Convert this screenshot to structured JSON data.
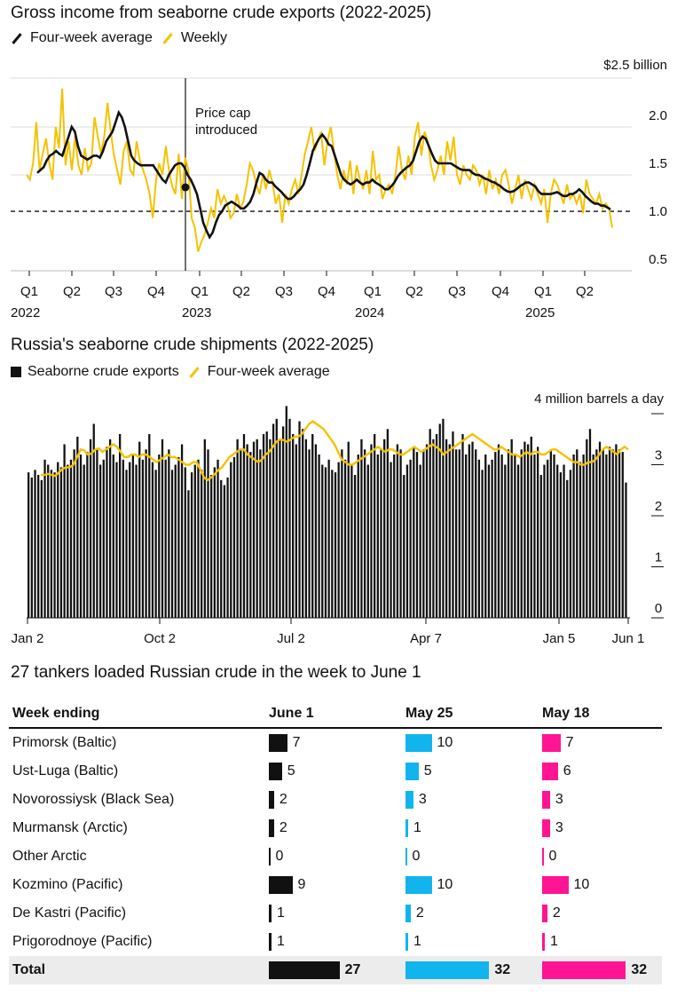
{
  "chart1": {
    "title": "Gross income from seaborne crude exports (2022-2025)",
    "legend": [
      "Four-week average",
      "Weekly"
    ],
    "colors": {
      "avg": "#111111",
      "weekly": "#f5c200"
    },
    "unit_label": "$2.5 billion",
    "y_ticks": [
      "2.0",
      "1.5",
      "1.0",
      "0.5"
    ],
    "quarters": [
      "Q1",
      "Q2",
      "Q3",
      "Q4",
      "Q1",
      "Q2",
      "Q3",
      "Q4",
      "Q1",
      "Q2",
      "Q3",
      "Q4",
      "Q1",
      "Q2"
    ],
    "years": [
      "2022",
      "2023",
      "2024",
      "2025"
    ],
    "annotation": "Price cap introduced",
    "annotation_lines": [
      "Price cap",
      "introduced"
    ]
  },
  "chart2": {
    "title": "Russia's seaborne crude shipments (2022-2025)",
    "legend": [
      "Seaborne crude exports",
      "Four-week average"
    ],
    "colors": {
      "bars": "#111111",
      "avg": "#f5c200"
    },
    "unit_label": "4 million barrels a day",
    "y_ticks": [
      "3",
      "2",
      "1",
      "0"
    ],
    "x_labels": [
      "Jan 2",
      "Oct 2",
      "Jul 2",
      "Apr 7",
      "Jan 5",
      "Jun 1"
    ]
  },
  "chart_data": [
    {
      "type": "line",
      "title": "Gross income from seaborne crude exports (2022-2025)",
      "ylabel": "$ billion",
      "ylim": [
        0.5,
        2.5
      ],
      "reference_line": 1.12,
      "annotation": {
        "text": "Price cap introduced",
        "date": "2022-12-05"
      },
      "series": [
        {
          "name": "Weekly",
          "values": [
            1.5,
            1.45,
            1.62,
            2.05,
            1.55,
            1.72,
            1.88,
            1.62,
            1.45,
            2.0,
            1.78,
            2.4,
            1.6,
            1.85,
            1.55,
            1.9,
            1.6,
            1.5,
            1.78,
            1.55,
            1.62,
            2.1,
            1.9,
            1.72,
            1.9,
            2.25,
            1.95,
            1.7,
            1.55,
            1.4,
            1.75,
            1.85,
            1.55,
            1.5,
            1.85,
            1.65,
            1.55,
            1.45,
            1.3,
            1.05,
            1.45,
            1.62,
            1.5,
            1.8,
            1.55,
            1.38,
            1.3,
            1.72,
            1.25,
            1.68,
            1.55,
            1.05,
            0.95,
            0.7,
            0.8,
            0.88,
            1.0,
            1.15,
            1.05,
            1.35,
            1.2,
            1.28,
            1.2,
            1.05,
            1.1,
            1.3,
            1.15,
            1.22,
            1.4,
            1.62,
            1.55,
            1.4,
            1.3,
            1.5,
            1.35,
            1.55,
            1.42,
            1.2,
            1.3,
            1.0,
            1.3,
            1.2,
            1.35,
            1.45,
            1.3,
            1.5,
            1.72,
            1.85,
            2.0,
            1.75,
            1.85,
            1.95,
            1.6,
            1.85,
            2.0,
            1.75,
            1.5,
            1.35,
            1.55,
            1.4,
            1.65,
            1.3,
            1.6,
            1.45,
            1.35,
            1.55,
            1.3,
            1.75,
            1.45,
            1.5,
            1.25,
            1.35,
            1.4,
            1.3,
            1.5,
            1.8,
            1.55,
            1.45,
            1.7,
            1.5,
            1.9,
            2.05,
            1.7,
            1.95,
            1.85,
            1.6,
            1.45,
            1.55,
            1.7,
            1.5,
            1.85,
            1.65,
            1.9,
            1.5,
            1.4,
            1.6,
            1.5,
            1.45,
            1.6,
            1.55,
            1.4,
            1.5,
            1.3,
            1.55,
            1.35,
            1.45,
            1.3,
            1.5,
            1.55,
            1.4,
            1.2,
            1.35,
            1.5,
            1.25,
            1.45,
            1.35,
            1.25,
            1.4,
            1.3,
            1.2,
            1.35,
            1.0,
            1.3,
            1.45,
            1.4,
            1.3,
            1.2,
            1.4,
            1.25,
            1.3,
            1.2,
            1.3,
            1.1,
            1.45,
            1.3,
            1.25,
            1.2,
            1.3,
            1.15,
            1.2,
            1.15,
            0.95
          ]
        },
        {
          "name": "Four-week average",
          "values": [
            1.52,
            1.55,
            1.58,
            1.65,
            1.7,
            1.72,
            1.75,
            1.72,
            1.7,
            1.8,
            1.9,
            2.0,
            1.95,
            1.8,
            1.7,
            1.68,
            1.66,
            1.68,
            1.7,
            1.7,
            1.68,
            1.75,
            1.85,
            1.9,
            1.95,
            2.05,
            2.15,
            2.1,
            2.0,
            1.85,
            1.7,
            1.65,
            1.62,
            1.6,
            1.6,
            1.6,
            1.6,
            1.6,
            1.55,
            1.5,
            1.45,
            1.42,
            1.5,
            1.55,
            1.6,
            1.62,
            1.62,
            1.58,
            1.5,
            1.45,
            1.38,
            1.3,
            1.15,
            1.0,
            0.92,
            0.85,
            0.9,
            1.0,
            1.08,
            1.12,
            1.18,
            1.2,
            1.22,
            1.2,
            1.18,
            1.15,
            1.15,
            1.18,
            1.22,
            1.3,
            1.42,
            1.52,
            1.5,
            1.45,
            1.42,
            1.42,
            1.38,
            1.35,
            1.32,
            1.28,
            1.25,
            1.25,
            1.28,
            1.32,
            1.35,
            1.4,
            1.5,
            1.62,
            1.75,
            1.82,
            1.88,
            1.92,
            1.88,
            1.82,
            1.8,
            1.7,
            1.6,
            1.5,
            1.45,
            1.42,
            1.4,
            1.42,
            1.45,
            1.42,
            1.4,
            1.42,
            1.42,
            1.45,
            1.42,
            1.4,
            1.38,
            1.35,
            1.35,
            1.38,
            1.42,
            1.48,
            1.52,
            1.55,
            1.58,
            1.6,
            1.65,
            1.75,
            1.85,
            1.9,
            1.88,
            1.8,
            1.72,
            1.65,
            1.62,
            1.62,
            1.62,
            1.62,
            1.62,
            1.6,
            1.58,
            1.56,
            1.55,
            1.55,
            1.55,
            1.52,
            1.5,
            1.5,
            1.48,
            1.46,
            1.45,
            1.43,
            1.42,
            1.4,
            1.38,
            1.35,
            1.33,
            1.32,
            1.33,
            1.35,
            1.38,
            1.4,
            1.42,
            1.42,
            1.4,
            1.38,
            1.33,
            1.3,
            1.3,
            1.3,
            1.3,
            1.31,
            1.32,
            1.3,
            1.28,
            1.28,
            1.3,
            1.3,
            1.32,
            1.35,
            1.32,
            1.28,
            1.25,
            1.22,
            1.2,
            1.2,
            1.18,
            1.18,
            1.16,
            1.14
          ]
        }
      ]
    },
    {
      "type": "bar",
      "title": "Russia's seaborne crude shipments (2022-2025)",
      "ylabel": "million barrels a day",
      "ylim": [
        0,
        4
      ],
      "series": [
        {
          "name": "Seaborne crude exports",
          "values": [
            2.85,
            2.75,
            2.9,
            2.8,
            2.7,
            3.1,
            3.0,
            2.9,
            2.85,
            3.05,
            2.95,
            3.4,
            3.0,
            3.1,
            3.3,
            3.55,
            3.2,
            3.0,
            3.25,
            3.5,
            3.8,
            3.3,
            3.0,
            3.1,
            3.35,
            3.5,
            3.2,
            3.05,
            3.6,
            3.1,
            2.9,
            3.05,
            3.2,
            3.0,
            3.45,
            3.1,
            3.3,
            3.6,
            3.05,
            2.9,
            3.2,
            3.5,
            3.1,
            3.3,
            2.9,
            3.0,
            3.15,
            3.4,
            2.95,
            2.5,
            2.85,
            3.0,
            3.1,
            2.9,
            3.5,
            3.3,
            2.8,
            2.95,
            3.1,
            2.7,
            2.6,
            2.75,
            3.05,
            3.15,
            3.5,
            3.3,
            3.6,
            3.4,
            3.25,
            3.45,
            3.5,
            3.3,
            3.6,
            3.65,
            3.5,
            3.8,
            3.9,
            3.5,
            3.75,
            4.15,
            3.9,
            3.6,
            3.4,
            3.85,
            3.7,
            3.5,
            3.3,
            3.6,
            3.4,
            3.2,
            3.0,
            2.95,
            3.1,
            2.9,
            2.85,
            3.05,
            3.3,
            3.1,
            3.45,
            3.0,
            2.8,
            3.2,
            3.5,
            3.3,
            3.0,
            3.4,
            3.6,
            3.2,
            3.3,
            3.5,
            3.7,
            3.05,
            3.2,
            3.4,
            3.3,
            2.8,
            3.0,
            3.1,
            3.35,
            3.25,
            3.0,
            3.3,
            3.4,
            3.7,
            3.5,
            3.6,
            3.8,
            3.9,
            3.5,
            3.4,
            3.65,
            3.3,
            3.3,
            3.6,
            3.2,
            3.4,
            3.45,
            3.3,
            3.1,
            2.9,
            3.2,
            3.0,
            3.1,
            3.25,
            3.4,
            3.2,
            3.0,
            3.3,
            3.5,
            3.2,
            3.0,
            3.3,
            3.45,
            3.4,
            3.55,
            3.2,
            3.35,
            2.8,
            3.0,
            3.1,
            3.3,
            3.2,
            3.0,
            2.85,
            3.0,
            2.7,
            2.9,
            3.2,
            3.3,
            3.05,
            3.2,
            3.5,
            3.7,
            3.2,
            3.3,
            3.45,
            3.3,
            3.2,
            3.35,
            3.3,
            3.4,
            3.3,
            3.25,
            2.65
          ]
        },
        {
          "name": "Four-week average",
          "values": [
            2.8,
            2.8,
            2.82,
            2.8,
            2.78,
            2.85,
            2.92,
            2.95,
            2.95,
            3.0,
            3.15,
            3.3,
            3.28,
            3.2,
            3.22,
            3.3,
            3.32,
            3.25,
            3.3,
            3.35,
            3.4,
            3.35,
            3.25,
            3.15,
            3.15,
            3.2,
            3.2,
            3.15,
            3.2,
            3.2,
            3.15,
            3.1,
            3.05,
            3.1,
            3.15,
            3.2,
            3.15,
            3.15,
            3.1,
            3.05,
            3.0,
            3.0,
            3.05,
            3.05,
            2.9,
            2.75,
            2.7,
            2.75,
            2.82,
            2.9,
            2.95,
            3.05,
            3.15,
            3.2,
            3.25,
            3.3,
            3.3,
            3.2,
            3.15,
            3.1,
            3.05,
            3.1,
            3.2,
            3.25,
            3.35,
            3.45,
            3.5,
            3.48,
            3.45,
            3.5,
            3.55,
            3.55,
            3.6,
            3.7,
            3.8,
            3.85,
            3.8,
            3.75,
            3.7,
            3.6,
            3.5,
            3.4,
            3.25,
            3.1,
            3.05,
            3.0,
            3.0,
            3.05,
            3.1,
            3.15,
            3.2,
            3.25,
            3.3,
            3.35,
            3.3,
            3.25,
            3.3,
            3.3,
            3.25,
            3.2,
            3.2,
            3.25,
            3.3,
            3.35,
            3.3,
            3.25,
            3.3,
            3.35,
            3.4,
            3.35,
            3.3,
            3.2,
            3.25,
            3.3,
            3.35,
            3.4,
            3.45,
            3.5,
            3.55,
            3.6,
            3.55,
            3.5,
            3.45,
            3.4,
            3.35,
            3.3,
            3.3,
            3.35,
            3.3,
            3.25,
            3.2,
            3.2,
            3.15,
            3.2,
            3.25,
            3.2,
            3.25,
            3.25,
            3.2,
            3.2,
            3.25,
            3.3,
            3.3,
            3.25,
            3.2,
            3.15,
            3.1,
            3.05,
            3.05,
            3.0,
            3.0,
            3.05,
            3.05,
            3.1,
            3.2,
            3.3,
            3.35,
            3.3,
            3.25,
            3.2,
            3.3,
            3.35,
            3.3
          ]
        }
      ]
    },
    {
      "type": "table",
      "title": "27 tankers loaded Russian crude in the week to June 1",
      "columns": [
        "Week ending",
        "June 1",
        "May 25",
        "May 18"
      ],
      "rows": [
        {
          "port": "Primorsk (Baltic)",
          "values": [
            7,
            10,
            7
          ]
        },
        {
          "port": "Ust-Luga (Baltic)",
          "values": [
            5,
            5,
            6
          ]
        },
        {
          "port": "Novorossiysk (Black Sea)",
          "values": [
            2,
            3,
            3
          ]
        },
        {
          "port": "Murmansk (Arctic)",
          "values": [
            2,
            1,
            3
          ]
        },
        {
          "port": "Other Arctic",
          "values": [
            0,
            0,
            0
          ]
        },
        {
          "port": "Kozmino (Pacific)",
          "values": [
            9,
            10,
            10
          ]
        },
        {
          "port": "De Kastri (Pacific)",
          "values": [
            1,
            2,
            2
          ]
        },
        {
          "port": "Prigorodnoye (Pacific)",
          "values": [
            1,
            1,
            1
          ]
        }
      ],
      "total": {
        "label": "Total",
        "values": [
          27,
          32,
          32
        ]
      },
      "column_colors": [
        "#111111",
        "#12b4ee",
        "#ff1493"
      ]
    }
  ]
}
